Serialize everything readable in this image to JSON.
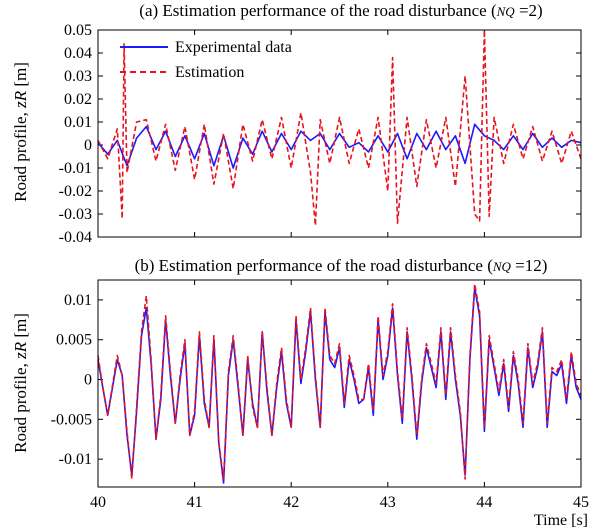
{
  "chart_data": [
    {
      "type": "line",
      "title": {
        "prefix": "(a) Estimation performance of the road disturbance (",
        "sym": "NQ",
        "suffix": " =2)"
      },
      "ylabel": {
        "text": "Road profile, ",
        "sym": "zR",
        "unit": " [m]"
      },
      "xlim": [
        40,
        45
      ],
      "ylim": [
        -0.04,
        0.05
      ],
      "yticks": [
        "0.05",
        "0.04",
        "0.03",
        "0.02",
        "0.01",
        "0",
        "-0.01",
        "-0.02",
        "-0.03",
        "-0.04"
      ],
      "legend": {
        "position": "top-left",
        "entries": [
          "Experimental data",
          "Estimation"
        ]
      },
      "series": [
        {
          "name": "Experimental data",
          "color": "#1a1aff",
          "style": "solid",
          "x": [
            40.0,
            40.1,
            40.2,
            40.3,
            40.4,
            40.5,
            40.6,
            40.7,
            40.8,
            40.9,
            41.0,
            41.1,
            41.2,
            41.3,
            41.4,
            41.5,
            41.6,
            41.7,
            41.8,
            41.9,
            42.0,
            42.1,
            42.2,
            42.3,
            42.4,
            42.5,
            42.6,
            42.7,
            42.8,
            42.9,
            43.0,
            43.1,
            43.2,
            43.3,
            43.4,
            43.5,
            43.6,
            43.7,
            43.8,
            43.9,
            44.0,
            44.1,
            44.2,
            44.3,
            44.4,
            44.5,
            44.6,
            44.7,
            44.8,
            44.9,
            45.0
          ],
          "y": [
            0.001,
            -0.004,
            0.002,
            -0.009,
            0.003,
            0.008,
            -0.002,
            0.006,
            -0.005,
            0.004,
            -0.006,
            0.005,
            -0.009,
            0.004,
            -0.01,
            0.003,
            -0.004,
            0.006,
            -0.003,
            0.005,
            -0.002,
            0.006,
            0.002,
            0.005,
            -0.002,
            0.005,
            -0.001,
            0.001,
            -0.003,
            0.004,
            -0.003,
            0.005,
            -0.006,
            0.005,
            -0.002,
            0.006,
            -0.002,
            0.004,
            -0.008,
            0.009,
            0.004,
            0.002,
            -0.002,
            0.004,
            -0.002,
            0.005,
            -0.001,
            0.003,
            -0.001,
            0.002,
            0.001
          ]
        },
        {
          "name": "Estimation",
          "color": "#e8121e",
          "style": "dashed",
          "x": [
            40.0,
            40.1,
            40.2,
            40.25,
            40.27,
            40.3,
            40.4,
            40.5,
            40.6,
            40.7,
            40.8,
            40.9,
            41.0,
            41.1,
            41.2,
            41.3,
            41.4,
            41.5,
            41.6,
            41.7,
            41.8,
            41.9,
            42.0,
            42.1,
            42.2,
            42.25,
            42.3,
            42.4,
            42.5,
            42.6,
            42.7,
            42.8,
            42.9,
            43.0,
            43.05,
            43.1,
            43.2,
            43.3,
            43.4,
            43.5,
            43.6,
            43.7,
            43.8,
            43.9,
            43.95,
            44.0,
            44.05,
            44.1,
            44.2,
            44.3,
            44.4,
            44.5,
            44.6,
            44.7,
            44.8,
            44.9,
            45.0
          ],
          "y": [
            0.002,
            -0.006,
            0.007,
            -0.032,
            0.044,
            -0.012,
            0.01,
            0.011,
            -0.007,
            0.009,
            -0.011,
            0.008,
            -0.015,
            0.009,
            -0.017,
            0.005,
            -0.019,
            0.009,
            -0.007,
            0.011,
            -0.006,
            0.012,
            -0.01,
            0.014,
            -0.012,
            -0.035,
            0.011,
            -0.008,
            0.012,
            -0.008,
            0.007,
            -0.01,
            0.012,
            -0.02,
            0.038,
            -0.034,
            0.012,
            -0.018,
            0.011,
            -0.01,
            0.012,
            -0.018,
            0.03,
            -0.03,
            -0.033,
            0.05,
            -0.031,
            0.012,
            -0.008,
            0.009,
            -0.006,
            0.008,
            -0.007,
            0.006,
            -0.008,
            0.006,
            -0.006
          ]
        }
      ]
    },
    {
      "type": "line",
      "title": {
        "prefix": "(b) Estimation performance of the road disturbance (",
        "sym": "NQ",
        "suffix": " =12)"
      },
      "ylabel": {
        "text": "Road profile, ",
        "sym": "zR",
        "unit": " [m]"
      },
      "xlabel": "Time [s]",
      "xlim": [
        40,
        45
      ],
      "ylim": [
        -0.0135,
        0.0125
      ],
      "yticks": [
        "0.01",
        "0.005",
        "0",
        "-0.005",
        "-0.01"
      ],
      "ytick_values": [
        0.01,
        0.005,
        0,
        -0.005,
        -0.01
      ],
      "xticks": [
        "40",
        "41",
        "42",
        "43",
        "44",
        "45"
      ],
      "series": [
        {
          "name": "Experimental data",
          "color": "#1a1aff",
          "style": "solid",
          "x": [
            40.0,
            40.05,
            40.1,
            40.2,
            40.25,
            40.3,
            40.35,
            40.4,
            40.45,
            40.5,
            40.55,
            40.6,
            40.65,
            40.7,
            40.75,
            40.8,
            40.85,
            40.9,
            40.95,
            41.0,
            41.05,
            41.1,
            41.15,
            41.2,
            41.25,
            41.3,
            41.35,
            41.4,
            41.45,
            41.5,
            41.55,
            41.6,
            41.65,
            41.7,
            41.75,
            41.8,
            41.85,
            41.9,
            41.95,
            42.0,
            42.05,
            42.1,
            42.15,
            42.2,
            42.25,
            42.3,
            42.35,
            42.4,
            42.45,
            42.5,
            42.55,
            42.6,
            42.65,
            42.7,
            42.75,
            42.8,
            42.85,
            42.9,
            42.95,
            43.0,
            43.05,
            43.1,
            43.15,
            43.2,
            43.25,
            43.3,
            43.35,
            43.4,
            43.45,
            43.5,
            43.55,
            43.6,
            43.65,
            43.7,
            43.75,
            43.8,
            43.85,
            43.9,
            43.95,
            44.0,
            44.05,
            44.1,
            44.15,
            44.2,
            44.25,
            44.3,
            44.35,
            44.4,
            44.45,
            44.5,
            44.55,
            44.6,
            44.65,
            44.7,
            44.75,
            44.8,
            44.85,
            44.9,
            44.95,
            45.0
          ],
          "y": [
            0.0025,
            -0.001,
            -0.0045,
            0.0025,
            0.0005,
            -0.007,
            -0.012,
            -0.004,
            0.0055,
            0.009,
            0.002,
            -0.0075,
            -0.0025,
            0.0075,
            0.0005,
            -0.0055,
            0.0,
            0.0045,
            -0.007,
            -0.0045,
            0.0055,
            -0.003,
            -0.006,
            0.005,
            -0.008,
            -0.013,
            0.0005,
            0.005,
            -0.001,
            -0.007,
            0.0025,
            -0.003,
            -0.006,
            0.006,
            -0.0015,
            -0.007,
            -0.001,
            0.0035,
            -0.003,
            -0.006,
            0.0075,
            -0.0005,
            0.0035,
            0.0085,
            0.0,
            -0.006,
            0.0085,
            0.0025,
            0.0015,
            0.004,
            -0.0035,
            0.0025,
            0.0,
            -0.003,
            -0.0025,
            0.0015,
            -0.0045,
            0.0075,
            0.0,
            0.003,
            0.009,
            0.0005,
            -0.0055,
            0.006,
            0.0,
            -0.0075,
            -0.0005,
            0.004,
            0.0015,
            -0.001,
            0.006,
            -0.0025,
            0.006,
            0.0,
            -0.0045,
            -0.012,
            0.0025,
            0.0115,
            0.008,
            -0.0065,
            0.005,
            0.0015,
            -0.002,
            0.002,
            -0.004,
            0.003,
            -0.0005,
            -0.006,
            0.004,
            -0.001,
            0.0015,
            0.006,
            -0.006,
            0.001,
            0.0005,
            0.002,
            -0.003,
            0.003,
            -0.001,
            -0.0025
          ]
        },
        {
          "name": "Estimation",
          "color": "#e8121e",
          "style": "dashed",
          "x": [
            40.0,
            40.05,
            40.1,
            40.2,
            40.25,
            40.3,
            40.35,
            40.4,
            40.45,
            40.5,
            40.55,
            40.6,
            40.65,
            40.7,
            40.75,
            40.8,
            40.85,
            40.9,
            40.95,
            41.0,
            41.05,
            41.1,
            41.15,
            41.2,
            41.25,
            41.3,
            41.35,
            41.4,
            41.45,
            41.5,
            41.55,
            41.6,
            41.65,
            41.7,
            41.75,
            41.8,
            41.85,
            41.9,
            41.95,
            42.0,
            42.05,
            42.1,
            42.15,
            42.2,
            42.25,
            42.3,
            42.35,
            42.4,
            42.45,
            42.5,
            42.55,
            42.6,
            42.65,
            42.7,
            42.75,
            42.8,
            42.85,
            42.9,
            42.95,
            43.0,
            43.05,
            43.1,
            43.15,
            43.2,
            43.25,
            43.3,
            43.35,
            43.4,
            43.45,
            43.5,
            43.55,
            43.6,
            43.65,
            43.7,
            43.75,
            43.8,
            43.85,
            43.9,
            43.95,
            44.0,
            44.05,
            44.1,
            44.15,
            44.2,
            44.25,
            44.3,
            44.35,
            44.4,
            44.45,
            44.5,
            44.55,
            44.6,
            44.65,
            44.7,
            44.75,
            44.8,
            44.85,
            44.9,
            44.95,
            45.0
          ],
          "y": [
            0.003,
            -0.001,
            -0.0045,
            0.003,
            0.0005,
            -0.0065,
            -0.0125,
            -0.0035,
            0.006,
            0.0105,
            0.0025,
            -0.0075,
            -0.002,
            0.008,
            0.001,
            -0.0055,
            0.0005,
            0.005,
            -0.007,
            -0.004,
            0.006,
            -0.0025,
            -0.006,
            0.0055,
            -0.008,
            -0.0125,
            0.001,
            0.0055,
            -0.0005,
            -0.007,
            0.003,
            -0.0035,
            -0.006,
            0.006,
            -0.001,
            -0.007,
            -0.0005,
            0.004,
            -0.0025,
            -0.006,
            0.008,
            0.0,
            0.004,
            0.009,
            0.0005,
            -0.006,
            0.009,
            0.003,
            0.002,
            0.0045,
            -0.003,
            0.003,
            0.0005,
            -0.0025,
            -0.0025,
            0.002,
            -0.004,
            0.008,
            0.0005,
            0.0035,
            0.0095,
            0.001,
            -0.005,
            0.0065,
            0.0005,
            -0.007,
            0.0,
            0.0045,
            0.002,
            -0.0005,
            0.0065,
            -0.002,
            0.0065,
            0.0005,
            -0.004,
            -0.0125,
            0.003,
            0.012,
            0.0085,
            -0.006,
            0.0055,
            0.002,
            -0.0015,
            0.0025,
            -0.0035,
            0.0035,
            0.0,
            -0.0055,
            0.0045,
            -0.0005,
            0.002,
            0.0065,
            -0.0055,
            0.0015,
            0.001,
            0.0025,
            -0.0025,
            0.0035,
            -0.0005,
            -0.002
          ]
        }
      ]
    }
  ]
}
